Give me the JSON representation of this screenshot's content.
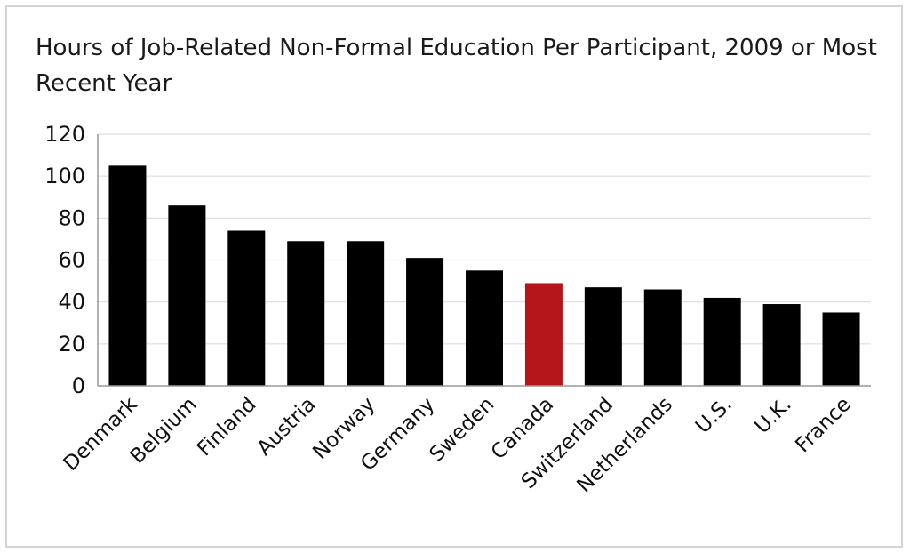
{
  "chart_data": {
    "type": "bar",
    "title": "Hours of Job-Related Non-Formal Education Per Participant, 2009 or Most Recent Year",
    "xlabel": "",
    "ylabel": "",
    "categories": [
      "Denmark",
      "Belgium",
      "Finland",
      "Austria",
      "Norway",
      "Germany",
      "Sweden",
      "Canada",
      "Switzerland",
      "Netherlands",
      "U.S.",
      "U.K.",
      "France"
    ],
    "values": [
      105,
      86,
      74,
      69,
      69,
      61,
      55,
      49,
      47,
      46,
      42,
      39,
      35
    ],
    "ylim": [
      0,
      120
    ],
    "yticks": [
      0,
      20,
      40,
      60,
      80,
      100,
      120
    ],
    "grid": true,
    "legend": "none",
    "colors": {
      "default": "#000000",
      "highlight": "#b5161c",
      "grid": "#dddddd",
      "axis": "#999999"
    },
    "highlight_category": "Canada"
  }
}
